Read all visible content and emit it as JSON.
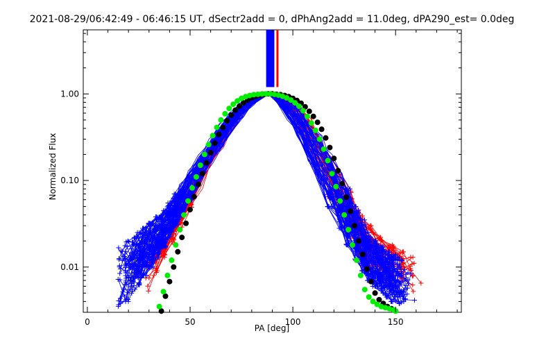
{
  "chart_data": {
    "type": "scatter",
    "title": "2021-08-29/06:42:49 - 06:46:15 UT, dSectr2add = 0, dPhAng2add = 11.0deg, dPA290_est=  0.0deg",
    "xlabel": "PA [deg]",
    "ylabel": "Normalized Flux",
    "xlim": [
      -2,
      182
    ],
    "ylim": [
      0.003,
      5.5
    ],
    "yscale": "log",
    "x_ticks": [
      0,
      50,
      100,
      150
    ],
    "x_tick_labels": [
      "0",
      "50",
      "100",
      "150"
    ],
    "y_ticks": [
      0.01,
      0.1,
      1.0
    ],
    "y_tick_labels": [
      "0.01",
      "0.10",
      "1.00"
    ],
    "grid": false,
    "legend": "none",
    "colors": {
      "blue": "#0000ff",
      "red": "#ff0000",
      "green": "#00ee00",
      "black": "#000000"
    },
    "series": [
      {
        "color": "blue",
        "style": "line+plus",
        "description_count": 70,
        "left_points_x": [
          16,
          19,
          22,
          25,
          28,
          31,
          34,
          37,
          40,
          43,
          46,
          50,
          55,
          60,
          65,
          70,
          75,
          80,
          85,
          89
        ],
        "right_points_x": [
          89,
          93,
          98,
          103,
          108,
          113,
          118,
          123,
          127,
          131,
          134,
          137,
          140,
          143,
          146,
          149,
          152,
          155,
          158
        ],
        "envelope_low": [
          0.0035,
          0.004,
          0.005,
          0.006,
          0.008,
          0.01,
          0.013,
          0.017,
          0.022,
          0.03,
          0.04,
          0.06,
          0.1,
          0.16,
          0.25,
          0.38,
          0.55,
          0.75,
          0.92,
          1.0
        ],
        "envelope_high": [
          0.018,
          0.02,
          0.022,
          0.025,
          0.028,
          0.032,
          0.038,
          0.045,
          0.055,
          0.07,
          0.09,
          0.13,
          0.2,
          0.3,
          0.45,
          0.6,
          0.78,
          0.9,
          0.98,
          1.0
        ],
        "right_envelope_low": [
          1.0,
          0.8,
          0.5,
          0.3,
          0.17,
          0.09,
          0.05,
          0.028,
          0.018,
          0.012,
          0.009,
          0.007,
          0.006,
          0.005,
          0.0045,
          0.004,
          0.0038,
          0.0036,
          0.0035
        ],
        "right_envelope_high": [
          1.0,
          0.95,
          0.85,
          0.7,
          0.5,
          0.33,
          0.2,
          0.12,
          0.08,
          0.05,
          0.035,
          0.025,
          0.02,
          0.017,
          0.015,
          0.014,
          0.013,
          0.012,
          0.012
        ]
      },
      {
        "color": "red",
        "style": "line+plus",
        "description_count": 35,
        "left_points_x": [
          29,
          33,
          37,
          41,
          45,
          50,
          55,
          60,
          65,
          70,
          75,
          80,
          85,
          89
        ],
        "right_points_x": [
          89,
          93,
          98,
          103,
          108,
          113,
          118,
          123,
          128,
          133,
          138,
          143,
          148,
          153,
          158,
          162
        ],
        "envelope_low": [
          0.005,
          0.008,
          0.012,
          0.018,
          0.028,
          0.045,
          0.08,
          0.14,
          0.24,
          0.38,
          0.55,
          0.75,
          0.93,
          1.0
        ],
        "envelope_high": [
          0.012,
          0.016,
          0.022,
          0.032,
          0.05,
          0.085,
          0.14,
          0.23,
          0.36,
          0.52,
          0.7,
          0.86,
          0.97,
          1.0
        ],
        "right_envelope_low": [
          1.0,
          0.85,
          0.6,
          0.38,
          0.22,
          0.12,
          0.065,
          0.035,
          0.02,
          0.013,
          0.009,
          0.007,
          0.006,
          0.0055,
          0.005,
          0.0048
        ],
        "right_envelope_high": [
          1.0,
          0.97,
          0.88,
          0.72,
          0.52,
          0.34,
          0.2,
          0.12,
          0.075,
          0.045,
          0.03,
          0.022,
          0.018,
          0.015,
          0.013,
          0.012
        ]
      },
      {
        "color": "green",
        "style": "dots",
        "x": [
          35,
          37,
          39,
          41,
          43,
          45,
          47,
          49,
          51,
          53,
          55,
          57,
          59,
          61,
          63,
          65,
          67,
          69,
          71,
          73,
          75,
          77,
          79,
          81,
          83,
          85,
          87,
          89,
          91,
          93,
          95,
          97,
          99,
          101,
          103,
          105,
          107,
          109,
          111,
          113,
          115,
          117,
          119,
          121,
          123,
          125,
          127,
          129,
          131,
          133,
          135,
          137,
          139,
          141,
          143,
          145,
          147,
          149,
          150
        ],
        "y": [
          0.0035,
          0.0052,
          0.008,
          0.012,
          0.018,
          0.027,
          0.04,
          0.058,
          0.082,
          0.11,
          0.15,
          0.2,
          0.26,
          0.33,
          0.41,
          0.5,
          0.59,
          0.68,
          0.76,
          0.83,
          0.89,
          0.93,
          0.96,
          0.98,
          0.99,
          1.0,
          1.0,
          1.0,
          0.99,
          0.97,
          0.94,
          0.9,
          0.85,
          0.79,
          0.72,
          0.64,
          0.55,
          0.46,
          0.38,
          0.3,
          0.23,
          0.17,
          0.12,
          0.085,
          0.058,
          0.04,
          0.027,
          0.018,
          0.012,
          0.008,
          0.0055,
          0.0045,
          0.004,
          0.0037,
          0.0035,
          0.0034,
          0.0033,
          0.0032,
          0.0031
        ]
      },
      {
        "color": "black",
        "style": "dots",
        "x": [
          36,
          38,
          40,
          42,
          44,
          46,
          48,
          50,
          52,
          54,
          56,
          58,
          60,
          62,
          64,
          66,
          68,
          70,
          72,
          74,
          76,
          78,
          80,
          82,
          84,
          86,
          88,
          90,
          92,
          94,
          96,
          98,
          100,
          102,
          104,
          106,
          108,
          110,
          112,
          114,
          116,
          118,
          120,
          122,
          124,
          126,
          128,
          130,
          132,
          134,
          136,
          138,
          140,
          142,
          144,
          146,
          148,
          150
        ],
        "y": [
          0.0031,
          0.0046,
          0.0068,
          0.01,
          0.015,
          0.022,
          0.032,
          0.046,
          0.065,
          0.09,
          0.12,
          0.16,
          0.21,
          0.27,
          0.34,
          0.41,
          0.49,
          0.57,
          0.65,
          0.72,
          0.79,
          0.85,
          0.9,
          0.94,
          0.97,
          0.99,
          1.0,
          1.0,
          0.99,
          0.98,
          0.96,
          0.93,
          0.89,
          0.84,
          0.78,
          0.71,
          0.63,
          0.55,
          0.47,
          0.39,
          0.31,
          0.24,
          0.18,
          0.13,
          0.092,
          0.064,
          0.044,
          0.03,
          0.02,
          0.014,
          0.0095,
          0.0068,
          0.005,
          0.0042,
          0.0038,
          0.0035,
          0.0033,
          0.0031
        ]
      }
    ],
    "spikes": {
      "blue": {
        "x_from": 87,
        "x_to": 91,
        "y_from": 1.2,
        "y_to": 5.5
      },
      "red": {
        "x_from": 92,
        "x_to": 93,
        "y_from": 1.2,
        "y_to": 5.5
      }
    }
  }
}
